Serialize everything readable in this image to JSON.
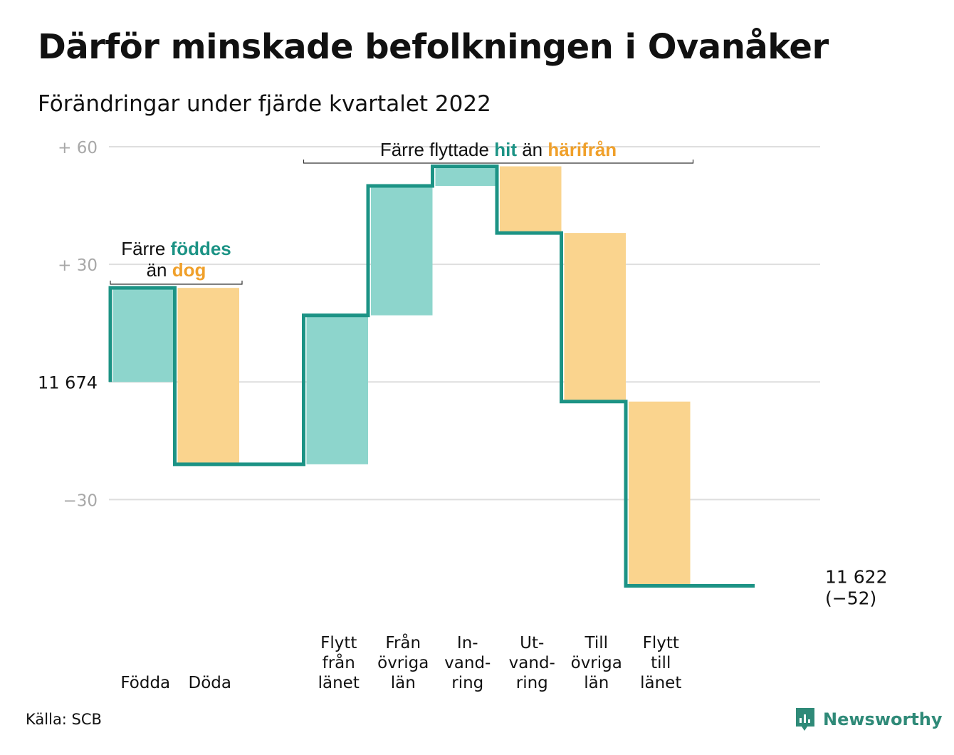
{
  "chart_data": {
    "type": "waterfall",
    "title": "Därför minskade befolkningen i Ovanåker",
    "subtitle": "Förändringar under fjärde kvartalet 2022",
    "start": {
      "label": "11 674",
      "value": 11674
    },
    "end": {
      "label": "11 622",
      "change_label": "(−52)",
      "value": 11622,
      "change": -52
    },
    "ylim": [
      -55,
      63
    ],
    "yticks": [
      {
        "value": 60,
        "label": "+ 60"
      },
      {
        "value": 30,
        "label": "+ 30"
      },
      {
        "value": 0,
        "label": ""
      },
      {
        "value": -30,
        "label": "−30"
      }
    ],
    "steps": [
      {
        "lines": [
          "Födda"
        ],
        "change": 24,
        "kind": "in"
      },
      {
        "lines": [
          "Döda"
        ],
        "change": -45,
        "kind": "out"
      },
      {
        "lines": [],
        "change": 0,
        "kind": "gap"
      },
      {
        "lines": [
          "Flytt",
          "från",
          "länet"
        ],
        "change": 38,
        "kind": "in"
      },
      {
        "lines": [
          "Från",
          "övriga",
          "län"
        ],
        "change": 33,
        "kind": "in"
      },
      {
        "lines": [
          "In-",
          "vand-",
          "ring"
        ],
        "change": 5,
        "kind": "in"
      },
      {
        "lines": [
          "Ut-",
          "vand-",
          "ring"
        ],
        "change": -17,
        "kind": "out"
      },
      {
        "lines": [
          "Till",
          "övriga",
          "län"
        ],
        "change": -43,
        "kind": "out"
      },
      {
        "lines": [
          "Flytt",
          "till",
          "länet"
        ],
        "change": -47,
        "kind": "out"
      },
      {
        "lines": [],
        "change": 0,
        "kind": "gap"
      }
    ],
    "annotations": [
      {
        "lines": [
          [
            [
              "Färre ",
              "normal"
            ],
            [
              "föddes",
              "in"
            ]
          ],
          [
            [
              "än ",
              "normal"
            ],
            [
              "dog",
              "out"
            ]
          ]
        ],
        "from_step": 0,
        "to_step": 1
      },
      {
        "lines": [
          [
            [
              "Färre flyttade ",
              "normal"
            ],
            [
              "hit",
              "in"
            ],
            [
              " än ",
              "normal"
            ],
            [
              "härifrån",
              "out"
            ]
          ]
        ],
        "from_step": 3,
        "to_step": 8
      }
    ],
    "colors": {
      "in": "#8dd5cc",
      "out": "#fad48e",
      "line": "#1c9385",
      "in_text": "#1c9385",
      "out_text": "#f0a02a",
      "grid": "#dedede",
      "tick_text": "#a8a8a8"
    }
  },
  "source": "Källa: SCB",
  "brand": {
    "name": "Newsworthy",
    "icon": "newsworthy-logo-icon"
  }
}
